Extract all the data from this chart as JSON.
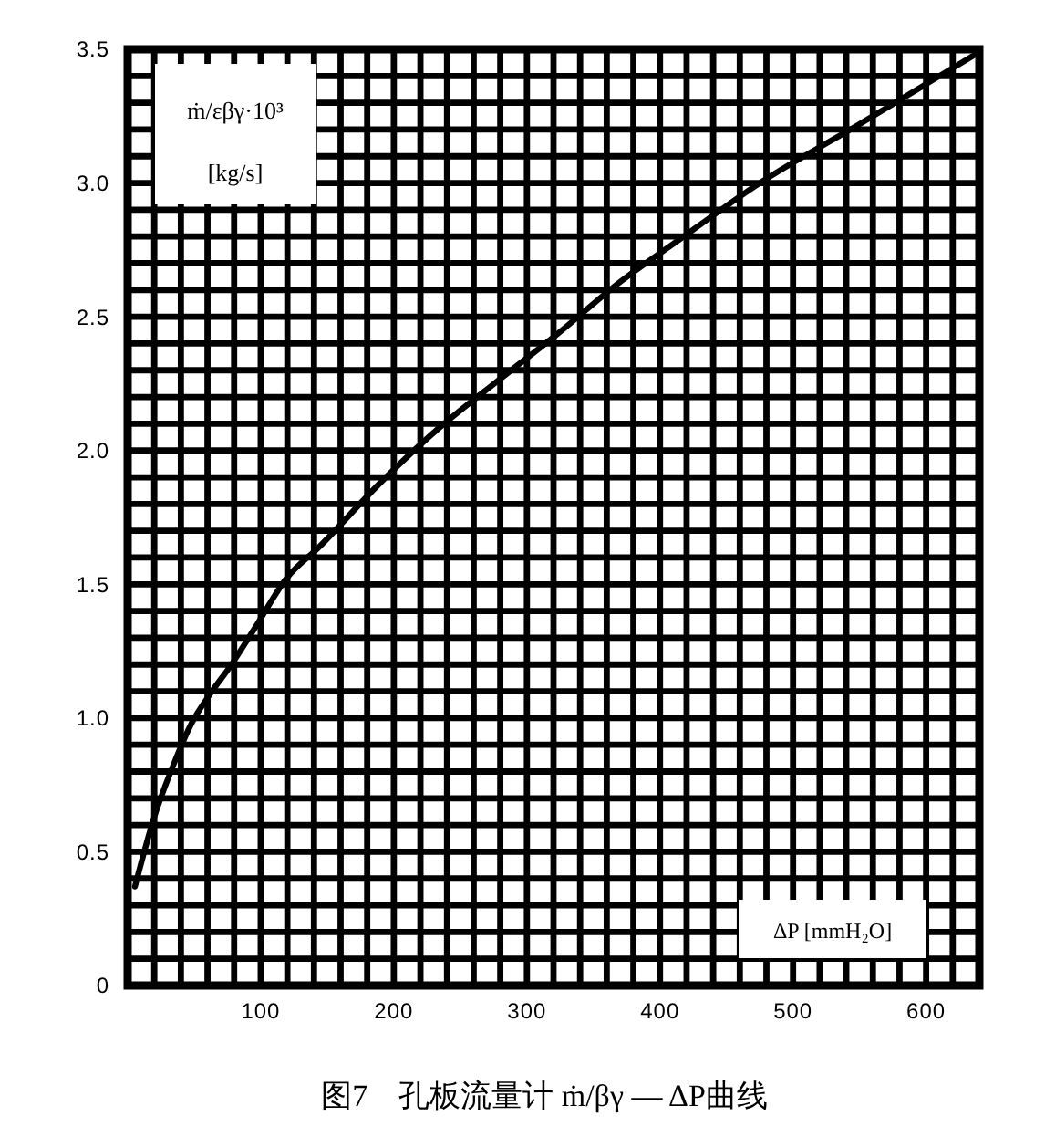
{
  "chart_data": {
    "type": "line",
    "title": "图7　孔板流量计 ṁ/βγ — ΔP曲线",
    "ylabel": "ṁ/εβγ·10³ [kg/s]",
    "xlabel": "ΔP [mmH₂O]",
    "x": [
      5.5,
      20,
      34,
      48,
      62,
      78,
      96,
      119,
      144,
      190,
      233,
      278,
      324,
      370,
      415,
      475,
      550,
      640
    ],
    "series": [
      {
        "color": "#000000",
        "values": [
          0.37,
          0.63,
          0.82,
          0.98,
          1.09,
          1.2,
          1.34,
          1.52,
          1.64,
          1.88,
          2.08,
          2.26,
          2.44,
          2.63,
          2.79,
          3.0,
          3.22,
          3.49
        ]
      }
    ],
    "xlim": [
      0,
      640
    ],
    "ylim": [
      0,
      3.5
    ],
    "xticks": [
      {
        "value": 0,
        "label": null
      },
      {
        "value": 20,
        "label": null
      },
      {
        "value": 40,
        "label": null
      },
      {
        "value": 60,
        "label": null
      },
      {
        "value": 80,
        "label": null
      },
      100,
      {
        "value": 120,
        "label": null
      },
      {
        "value": 140,
        "label": null
      },
      {
        "value": 160,
        "label": null
      },
      {
        "value": 180,
        "label": null
      },
      200,
      {
        "value": 220,
        "label": null
      },
      {
        "value": 240,
        "label": null
      },
      {
        "value": 260,
        "label": null
      },
      {
        "value": 280,
        "label": null
      },
      300,
      {
        "value": 320,
        "label": null
      },
      {
        "value": 340,
        "label": null
      },
      {
        "value": 360,
        "label": null
      },
      {
        "value": 380,
        "label": null
      },
      400,
      {
        "value": 420,
        "label": null
      },
      {
        "value": 440,
        "label": null
      },
      {
        "value": 460,
        "label": null
      },
      {
        "value": 480,
        "label": null
      },
      500,
      {
        "value": 520,
        "label": null
      },
      {
        "value": 540,
        "label": null
      },
      {
        "value": 560,
        "label": null
      },
      {
        "value": 580,
        "label": null
      },
      600,
      {
        "value": 620,
        "label": null
      },
      {
        "value": 640,
        "label": null
      }
    ],
    "yticks": [
      0,
      {
        "value": 0.1,
        "label": null
      },
      {
        "value": 0.2,
        "label": null
      },
      {
        "value": 0.3,
        "label": null
      },
      {
        "value": 0.4,
        "label": null
      },
      0.5,
      {
        "value": 0.6,
        "label": null
      },
      {
        "value": 0.7,
        "label": null
      },
      {
        "value": 0.8,
        "label": null
      },
      {
        "value": 0.9,
        "label": null
      },
      {
        "value": 1,
        "label": "1.0"
      },
      {
        "value": 1.1,
        "label": null
      },
      {
        "value": 1.2,
        "label": null
      },
      {
        "value": 1.3,
        "label": null
      },
      {
        "value": 1.4,
        "label": null
      },
      1.5,
      {
        "value": 1.6,
        "label": null
      },
      {
        "value": 1.7,
        "label": null
      },
      {
        "value": 1.8,
        "label": null
      },
      {
        "value": 1.9,
        "label": null
      },
      {
        "value": 2,
        "label": "2.0"
      },
      {
        "value": 2.1,
        "label": null
      },
      {
        "value": 2.2,
        "label": null
      },
      {
        "value": 2.3,
        "label": null
      },
      {
        "value": 2.4,
        "label": null
      },
      2.5,
      {
        "value": 2.6,
        "label": null
      },
      {
        "value": 2.7,
        "label": null
      },
      {
        "value": 2.8,
        "label": null
      },
      {
        "value": 2.9,
        "label": null
      },
      {
        "value": 3,
        "label": "3.0"
      },
      {
        "value": 3.1,
        "label": null
      },
      {
        "value": 3.2,
        "label": null
      },
      {
        "value": 3.3,
        "label": null
      },
      {
        "value": 3.4,
        "label": null
      },
      3.5
    ],
    "grid": true,
    "marker": "none",
    "line_style": "solid"
  }
}
